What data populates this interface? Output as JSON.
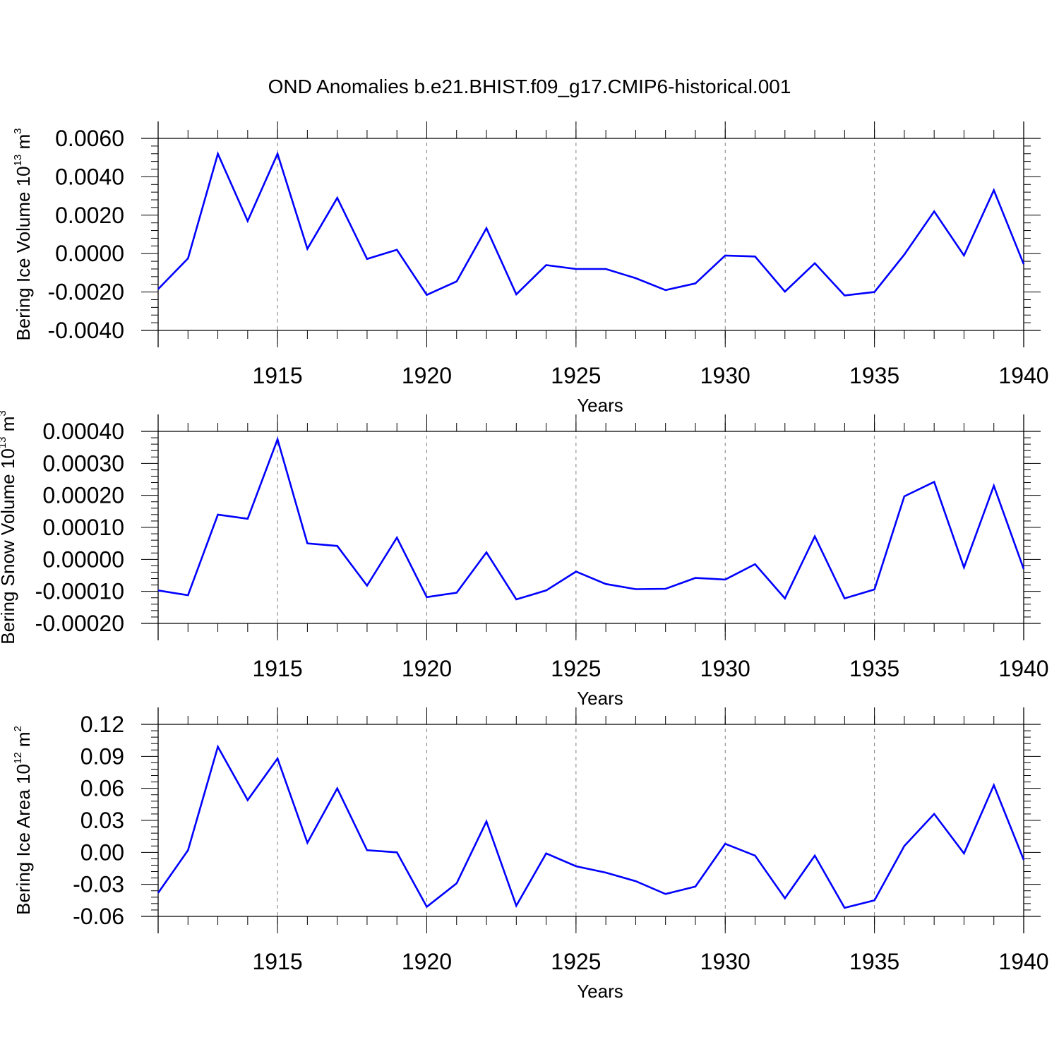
{
  "title": "OND Anomalies b.e21.BHIST.f09_g17.CMIP6-historical.001",
  "colors": {
    "line": "#0000ff",
    "axis": "#000000",
    "grid": "#808080",
    "background": "#ffffff"
  },
  "chart_data": [
    {
      "type": "line",
      "ylabel_prefix": "Bering Ice Volume 10",
      "ylabel_exponent": "13",
      "ylabel_unit": "m",
      "ylabel_unit_exponent": "3",
      "xlabel": "Years",
      "xlim": [
        1911,
        1940
      ],
      "ylim": [
        -0.004,
        0.006
      ],
      "yticks": [
        -0.004,
        -0.002,
        0.0,
        0.002,
        0.004,
        0.006
      ],
      "ytick_labels": [
        "-0.0040",
        "-0.0020",
        "0.0000",
        "0.0020",
        "0.0040",
        "0.0060"
      ],
      "xticks": [
        1915,
        1920,
        1925,
        1930,
        1935,
        1940
      ],
      "xtick_labels": [
        "1915",
        "1920",
        "1925",
        "1930",
        "1935",
        "1940"
      ],
      "grid_x": [
        1915,
        1920,
        1925,
        1930,
        1935
      ],
      "series": [
        {
          "name": "Bering Ice Volume",
          "x": [
            1911,
            1912,
            1913,
            1914,
            1915,
            1916,
            1917,
            1918,
            1919,
            1920,
            1921,
            1922,
            1923,
            1924,
            1925,
            1926,
            1927,
            1928,
            1929,
            1930,
            1931,
            1932,
            1933,
            1934,
            1935,
            1936,
            1937,
            1938,
            1939,
            1940
          ],
          "values": [
            -0.00185,
            -0.00025,
            0.0052,
            0.0017,
            0.0052,
            0.00025,
            0.0029,
            -0.00028,
            0.0002,
            -0.00215,
            -0.00145,
            0.00132,
            -0.00212,
            -0.0006,
            -0.0008,
            -0.0008,
            -0.00128,
            -0.0019,
            -0.00155,
            -0.0001,
            -0.00015,
            -0.00198,
            -0.0005,
            -0.00218,
            -0.002,
            -5e-05,
            0.0022,
            -0.0001,
            0.0033,
            -0.00055
          ]
        }
      ]
    },
    {
      "type": "line",
      "ylabel_prefix": "Bering Snow Volume 10",
      "ylabel_exponent": "13",
      "ylabel_unit": "m",
      "ylabel_unit_exponent": "3",
      "xlabel": "Years",
      "xlim": [
        1911,
        1940
      ],
      "ylim": [
        -0.0002,
        0.0004
      ],
      "yticks": [
        -0.0002,
        -0.0001,
        0.0,
        0.0001,
        0.0002,
        0.0003,
        0.0004
      ],
      "ytick_labels": [
        "-0.00020",
        "-0.00010",
        "0.00000",
        "0.00010",
        "0.00020",
        "0.00030",
        "0.00040"
      ],
      "xticks": [
        1915,
        1920,
        1925,
        1930,
        1935,
        1940
      ],
      "xtick_labels": [
        "1915",
        "1920",
        "1925",
        "1930",
        "1935",
        "1940"
      ],
      "grid_x": [
        1915,
        1920,
        1925,
        1930,
        1935
      ],
      "series": [
        {
          "name": "Bering Snow Volume",
          "x": [
            1911,
            1912,
            1913,
            1914,
            1915,
            1916,
            1917,
            1918,
            1919,
            1920,
            1921,
            1922,
            1923,
            1924,
            1925,
            1926,
            1927,
            1928,
            1929,
            1930,
            1931,
            1932,
            1933,
            1934,
            1935,
            1936,
            1937,
            1938,
            1939,
            1940
          ],
          "values": [
            -9.7e-05,
            -0.000112,
            0.00014,
            0.000127,
            0.000375,
            5e-05,
            4.2e-05,
            -8.2e-05,
            6.8e-05,
            -0.000118,
            -0.000104,
            2.2e-05,
            -0.000125,
            -9.7e-05,
            -3.8e-05,
            -7.7e-05,
            -9.3e-05,
            -9.2e-05,
            -5.8e-05,
            -6.3e-05,
            -1.5e-05,
            -0.000122,
            7.2e-05,
            -0.000122,
            -9.4e-05,
            0.000197,
            0.000242,
            -2.5e-05,
            0.00023,
            -3e-05
          ]
        }
      ]
    },
    {
      "type": "line",
      "ylabel_prefix": "Bering Ice Area 10",
      "ylabel_exponent": "12",
      "ylabel_unit": "m",
      "ylabel_unit_exponent": "2",
      "xlabel": "Years",
      "xlim": [
        1911,
        1940
      ],
      "ylim": [
        -0.06,
        0.12
      ],
      "yticks": [
        -0.06,
        -0.03,
        0.0,
        0.03,
        0.06,
        0.09,
        0.12
      ],
      "ytick_labels": [
        "-0.06",
        "-0.03",
        "0.00",
        "0.03",
        "0.06",
        "0.09",
        "0.12"
      ],
      "xticks": [
        1915,
        1920,
        1925,
        1930,
        1935,
        1940
      ],
      "xtick_labels": [
        "1915",
        "1920",
        "1925",
        "1930",
        "1935",
        "1940"
      ],
      "grid_x": [
        1915,
        1920,
        1925,
        1930,
        1935
      ],
      "series": [
        {
          "name": "Bering Ice Area",
          "x": [
            1911,
            1912,
            1913,
            1914,
            1915,
            1916,
            1917,
            1918,
            1919,
            1920,
            1921,
            1922,
            1923,
            1924,
            1925,
            1926,
            1927,
            1928,
            1929,
            1930,
            1931,
            1932,
            1933,
            1934,
            1935,
            1936,
            1937,
            1938,
            1939,
            1940
          ],
          "values": [
            -0.038,
            0.002,
            0.099,
            0.049,
            0.088,
            0.009,
            0.06,
            0.002,
            0.0,
            -0.051,
            -0.029,
            0.029,
            -0.05,
            -0.001,
            -0.013,
            -0.019,
            -0.027,
            -0.039,
            -0.032,
            0.008,
            -0.003,
            -0.043,
            -0.003,
            -0.052,
            -0.045,
            0.006,
            0.036,
            -0.001,
            0.063,
            -0.007
          ]
        }
      ]
    }
  ]
}
